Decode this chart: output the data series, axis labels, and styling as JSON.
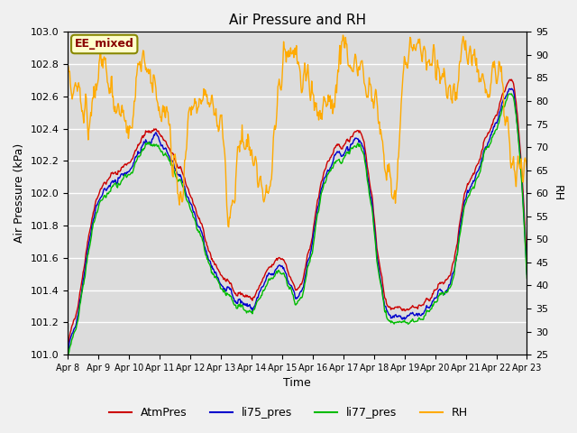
{
  "title": "Air Pressure and RH",
  "xlabel": "Time",
  "ylabel_left": "Air Pressure (kPa)",
  "ylabel_right": "RH",
  "ylim_left": [
    101.0,
    103.0
  ],
  "ylim_right": [
    25,
    95
  ],
  "yticks_left": [
    101.0,
    101.2,
    101.4,
    101.6,
    101.8,
    102.0,
    102.2,
    102.4,
    102.6,
    102.8,
    103.0
  ],
  "yticks_right": [
    25,
    30,
    35,
    40,
    45,
    50,
    55,
    60,
    65,
    70,
    75,
    80,
    85,
    90,
    95
  ],
  "xtick_labels": [
    "Apr 8",
    "Apr 9",
    "Apr 10",
    "Apr 11",
    "Apr 12",
    "Apr 13",
    "Apr 14",
    "Apr 15",
    "Apr 16",
    "Apr 17",
    "Apr 18",
    "Apr 19",
    "Apr 20",
    "Apr 21",
    "Apr 22",
    "Apr 23"
  ],
  "n_days": 15,
  "pts_per_day": 48,
  "plot_bg_color": "#dcdcdc",
  "fig_bg_color": "#f0f0f0",
  "grid_color": "#ffffff",
  "atm_color": "#cc0000",
  "li75_color": "#0000cc",
  "li77_color": "#00bb00",
  "rh_color": "#ffaa00",
  "line_width": 1.0,
  "annotation_text": "EE_mixed",
  "annotation_bg": "#ffffcc",
  "annotation_border": "#888800",
  "annotation_text_color": "#880000",
  "legend_labels": [
    "AtmPres",
    "li75_pres",
    "li77_pres",
    "RH"
  ]
}
